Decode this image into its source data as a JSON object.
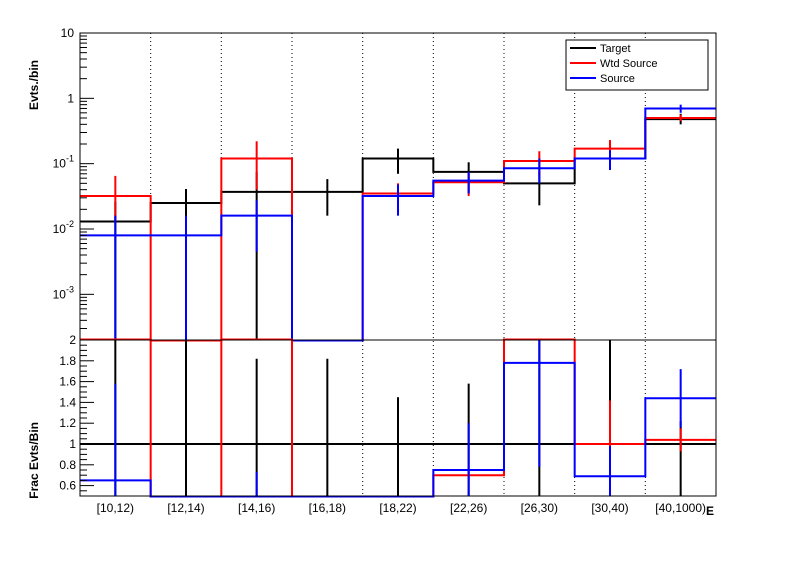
{
  "chart_data": [
    {
      "type": "line",
      "panel": "upper",
      "ylabel": "Evts./bin",
      "xlabel": "",
      "yscale": "log",
      "ylim": [
        0.0002,
        10
      ],
      "y_ticks": [
        {
          "value": 0.001,
          "base": "10",
          "exp": "-3"
        },
        {
          "value": 0.01,
          "base": "10",
          "exp": "-2"
        },
        {
          "value": 0.1,
          "base": "10",
          "exp": "-1"
        },
        {
          "value": 1,
          "base": "1",
          "exp": ""
        },
        {
          "value": 10,
          "base": "10",
          "exp": ""
        }
      ],
      "categories": [
        "[10,12)",
        "[12,14)",
        "[14,16)",
        "[16,18)",
        "[18,22)",
        "[22,26)",
        "[26,30)",
        "[30,40)",
        "[40,1000)"
      ],
      "legend": {
        "placement": "top-right"
      },
      "grid": "vertical dotted",
      "series": [
        {
          "name": "Target",
          "color": "#000000",
          "values": [
            0.013,
            0.025,
            0.037,
            0.037,
            0.12,
            0.075,
            0.05,
            0.12,
            0.48
          ],
          "err_low": [
            0.013,
            0.025,
            0.037,
            0.021,
            0.05,
            0.04,
            0.027,
            0.03,
            0.08
          ],
          "err_high": [
            0.013,
            0.016,
            0.037,
            0.021,
            0.05,
            0.03,
            0.027,
            0.03,
            0.1
          ]
        },
        {
          "name": "Wtd Source",
          "color": "#ff0000",
          "values": [
            0.032,
            0.0001,
            0.12,
            0.0001,
            0.035,
            0.052,
            0.11,
            0.17,
            0.5
          ],
          "err_low": [
            0.019,
            0,
            0.08,
            0,
            0.015,
            0.02,
            0.045,
            0.06,
            0.05
          ],
          "err_high": [
            0.033,
            0,
            0.1,
            0,
            0.015,
            0.02,
            0.045,
            0.06,
            0.06
          ]
        },
        {
          "name": "Source",
          "color": "#0000ff",
          "values": [
            0.008,
            0.008,
            0.016,
            0.0001,
            0.032,
            0.055,
            0.085,
            0.12,
            0.7
          ],
          "err_low": [
            0.008,
            0.008,
            0.0115,
            0,
            0.016,
            0.02,
            0.035,
            0.04,
            0.1
          ],
          "err_high": [
            0.008,
            0.008,
            0.0115,
            0,
            0.016,
            0.02,
            0.035,
            0.04,
            0.1
          ]
        }
      ]
    },
    {
      "type": "line",
      "panel": "lower",
      "ylabel": "Frac Evts/Bin",
      "xlabel": "E",
      "ylim": [
        0.5,
        2
      ],
      "y_ticks": [
        0.6,
        0.8,
        1,
        1.2,
        1.4,
        1.6,
        1.8,
        2
      ],
      "y_tick_labels": [
        "0.6",
        "0.8",
        "1",
        "1.2",
        "1.4",
        "1.6",
        "1.8",
        "2"
      ],
      "categories": [
        "[10,12)",
        "[12,14)",
        "[14,16)",
        "[16,18)",
        "[18,22)",
        "[22,26)",
        "[26,30)",
        "[30,40)",
        "[40,1000)"
      ],
      "grid": "vertical dotted",
      "series": [
        {
          "name": "Target",
          "color": "#000000",
          "values": [
            1,
            1,
            1,
            1,
            1,
            1,
            1,
            1,
            1
          ],
          "err_low": [
            1,
            1,
            1,
            1,
            1,
            1,
            1,
            1,
            1
          ],
          "err_high": [
            1,
            1,
            0.82,
            0.82,
            0.45,
            0.58,
            1,
            1,
            0.22
          ]
        },
        {
          "name": "Wtd Source",
          "color": "#ff0000",
          "values": [
            2.5,
            0,
            3.2,
            0,
            0.3,
            0.7,
            2.2,
            1.0,
            1.04
          ],
          "err_low": [
            0,
            0,
            0,
            0,
            0,
            0.05,
            0,
            0.4,
            0.11
          ],
          "err_high": [
            0,
            0,
            0,
            0,
            0,
            0.05,
            0,
            0.42,
            0.11
          ]
        },
        {
          "name": "Source",
          "color": "#0000ff",
          "values": [
            0.65,
            0.3,
            0.43,
            0.0,
            0.27,
            0.75,
            1.78,
            0.69,
            1.44
          ],
          "err_low": [
            0.65,
            0,
            0.3,
            0,
            0,
            0.45,
            1.0,
            0.29,
            0.28
          ],
          "err_high": [
            0.93,
            0,
            0.3,
            0,
            0,
            0.45,
            1.0,
            0.29,
            0.28
          ]
        }
      ]
    }
  ]
}
